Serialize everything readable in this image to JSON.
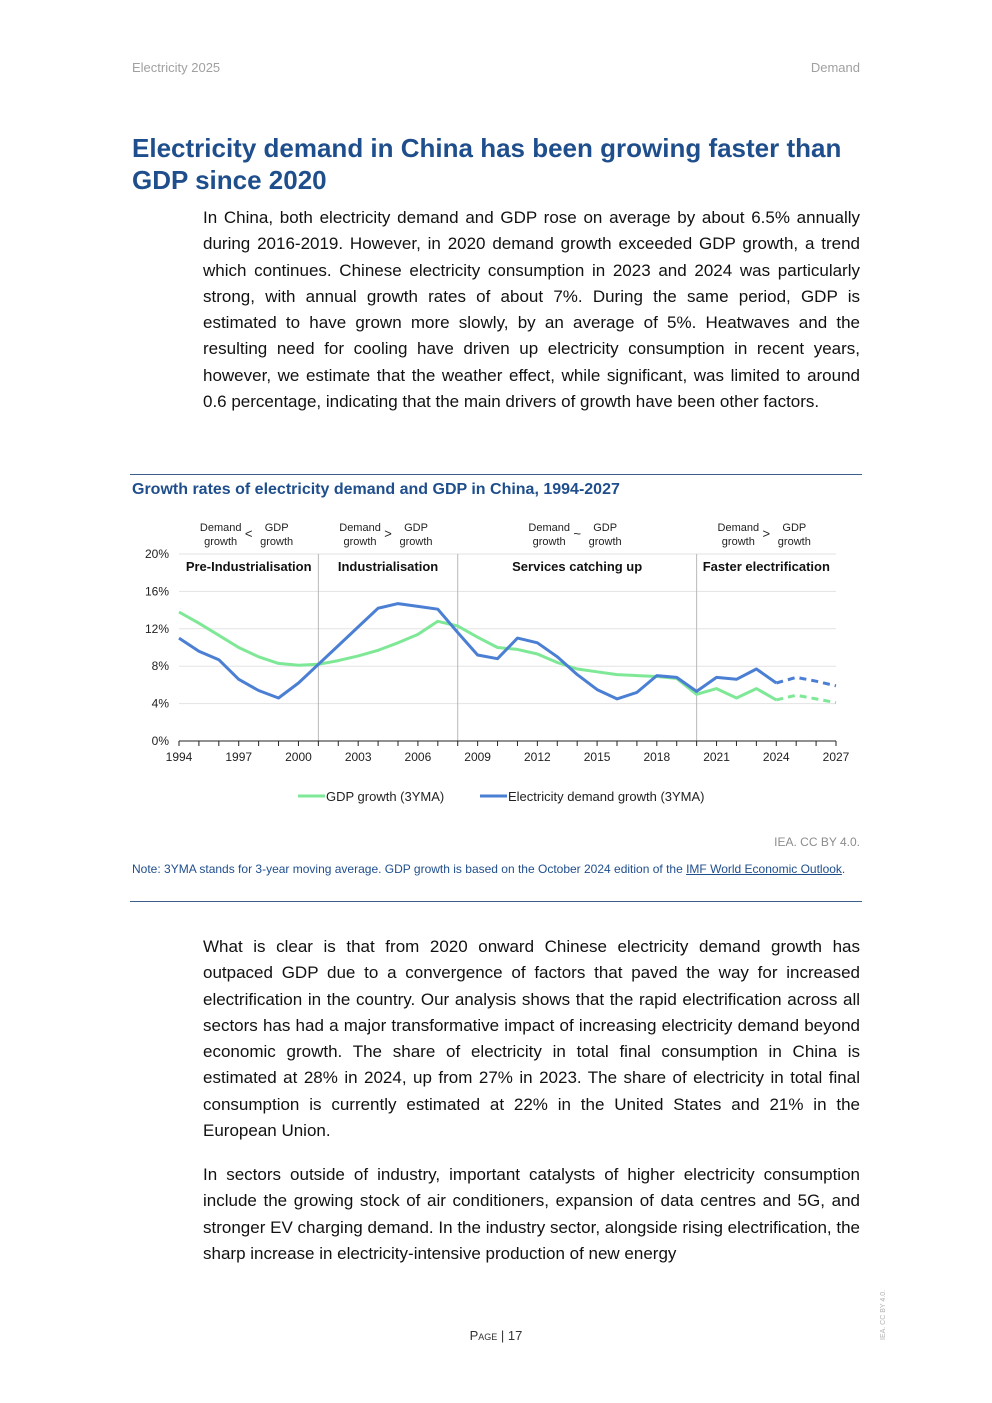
{
  "header": {
    "left": "Electricity 2025",
    "right": "Demand"
  },
  "title": "Electricity demand in China has been growing faster than GDP since 2020",
  "paragraphs": {
    "p1": "In China, both electricity demand and GDP rose on average by about 6.5% annually during 2016-2019. However, in 2020 demand growth exceeded GDP growth, a trend which continues. Chinese electricity consumption in 2023 and 2024 was particularly strong, with annual growth rates of about 7%. During the same period, GDP is estimated to have grown more slowly, by an average of 5%. Heatwaves and the resulting need for cooling have driven up electricity consumption in recent years, however, we estimate that the weather effect, while significant, was limited to around 0.6 percentage, indicating that the main drivers of growth have been other factors.",
    "p2": "What is clear is that from 2020 onward Chinese electricity demand growth has outpaced GDP due to a convergence of factors that paved the way for increased electrification in the country. Our analysis shows that the rapid electrification across all sectors has had a major transformative impact of increasing electricity demand beyond economic growth. The share of electricity in total final consumption in China is estimated at 28% in 2024, up from 27% in 2023. The share of electricity in total final consumption is currently estimated at 22% in the United States and 21% in the European Union.",
    "p3": "In sectors outside of industry, important catalysts of higher electricity consumption include the growing stock of air conditioners, expansion of data centres and 5G, and stronger EV charging demand. In the industry sector, alongside rising electrification, the sharp increase in electricity-intensive production of new energy"
  },
  "chart_data": {
    "type": "line",
    "title": "Growth rates of electricity demand and GDP in China, 1994-2027",
    "x_ticks": [
      1994,
      1997,
      2000,
      2003,
      2006,
      2009,
      2012,
      2015,
      2018,
      2021,
      2024,
      2027
    ],
    "xlim": [
      1994,
      2027
    ],
    "ylim": [
      0,
      20
    ],
    "y_ticks": [
      "0%",
      "4%",
      "8%",
      "12%",
      "16%",
      "20%"
    ],
    "y_tick_values": [
      0,
      4,
      8,
      12,
      16,
      20
    ],
    "phase_dividers": [
      2001,
      2008,
      2020
    ],
    "phases": [
      {
        "label": "Pre-Industrialisation",
        "from": 1994,
        "to": 2001,
        "demand": "Demand",
        "demand2": "growth",
        "op": "<",
        "gdp": "GDP",
        "gdp2": "growth"
      },
      {
        "label": "Industrialisation",
        "from": 2001,
        "to": 2008,
        "demand": "Demand",
        "demand2": "growth",
        "op": ">",
        "gdp": "GDP",
        "gdp2": "growth"
      },
      {
        "label": "Services catching up",
        "from": 2008,
        "to": 2020,
        "demand": "Demand",
        "demand2": "growth",
        "op": "~",
        "gdp": "GDP",
        "gdp2": "growth"
      },
      {
        "label": "Faster electrification",
        "from": 2020,
        "to": 2027,
        "demand": "Demand",
        "demand2": "growth",
        "op": ">",
        "gdp": "GDP",
        "gdp2": "growth"
      }
    ],
    "forecast_from": 2024,
    "series": [
      {
        "name": "GDP growth (3YMA)",
        "color": "#7ee896",
        "x": [
          1994,
          1995,
          1996,
          1997,
          1998,
          1999,
          2000,
          2001,
          2002,
          2003,
          2004,
          2005,
          2006,
          2007,
          2008,
          2009,
          2010,
          2011,
          2012,
          2013,
          2014,
          2015,
          2016,
          2017,
          2018,
          2019,
          2020,
          2021,
          2022,
          2023,
          2024,
          2025,
          2026,
          2027
        ],
        "values": [
          13.8,
          12.6,
          11.3,
          10.0,
          9.0,
          8.3,
          8.1,
          8.2,
          8.6,
          9.1,
          9.7,
          10.5,
          11.4,
          12.8,
          12.3,
          11.1,
          10.0,
          9.8,
          9.3,
          8.4,
          7.7,
          7.4,
          7.1,
          7.0,
          6.9,
          6.7,
          5.0,
          5.6,
          4.6,
          5.6,
          4.4,
          4.9,
          4.5,
          4.1
        ]
      },
      {
        "name": "Electricity demand growth (3YMA)",
        "color": "#4a7fd4",
        "x": [
          1994,
          1995,
          1996,
          1997,
          1998,
          1999,
          2000,
          2001,
          2002,
          2003,
          2004,
          2005,
          2006,
          2007,
          2008,
          2009,
          2010,
          2011,
          2012,
          2013,
          2014,
          2015,
          2016,
          2017,
          2018,
          2019,
          2020,
          2021,
          2022,
          2023,
          2024,
          2025,
          2026,
          2027
        ],
        "values": [
          11.0,
          9.6,
          8.7,
          6.6,
          5.4,
          4.6,
          6.2,
          8.2,
          10.2,
          12.2,
          14.2,
          14.7,
          14.4,
          14.1,
          11.6,
          9.2,
          8.8,
          11.0,
          10.5,
          9.0,
          7.1,
          5.5,
          4.5,
          5.2,
          7.0,
          6.8,
          5.3,
          6.8,
          6.6,
          7.7,
          6.2,
          6.8,
          6.4,
          5.9
        ]
      }
    ],
    "legend_position": "bottom"
  },
  "chart_credit": "IEA. CC BY 4.0.",
  "note": {
    "prefix": "Note: 3YMA stands for 3-year moving average. GDP growth is based on the October 2024 edition of the ",
    "link": "IMF World Economic Outlook",
    "suffix": "."
  },
  "footer": {
    "page_word": "Page",
    "separator": " | ",
    "page_number": "17"
  },
  "side_license": "IEA. CC BY 4.0."
}
